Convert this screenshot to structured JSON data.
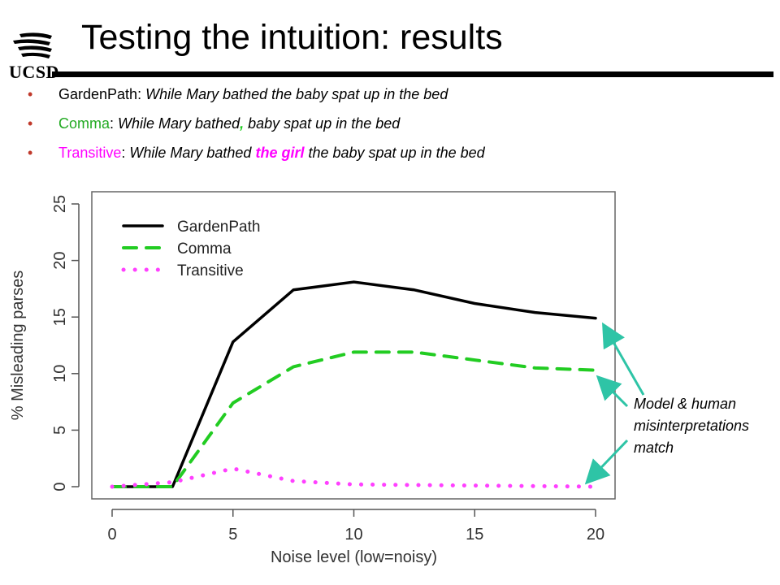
{
  "header": {
    "logo_text": "UCSD",
    "title": "Testing the intuition: results"
  },
  "bullets": [
    {
      "label": "GardenPath",
      "sep": ": ",
      "pre": "While Mary bathed the baby spat up in the bed",
      "mark": "",
      "post": ""
    },
    {
      "label": "Comma",
      "sep": ": ",
      "pre": "While Mary bathed",
      "mark": ",",
      "post": " baby spat up in the bed"
    },
    {
      "label": "Transitive",
      "sep": ": ",
      "pre": "While Mary bathed ",
      "mark": "the girl",
      "post": " the baby spat up in the bed"
    }
  ],
  "colors": {
    "gardenpath": "#000000",
    "comma": "#22cc22",
    "transitive": "#ff40ff",
    "arrow": "#2ec4a6",
    "bullet": "#c0392b"
  },
  "annotation": {
    "lines": [
      "Model & human",
      "misinterpretations",
      "match"
    ]
  },
  "chart_data": {
    "type": "line",
    "xlabel": "Noise level (low=noisy)",
    "ylabel": "% Misleading parses",
    "xlim": [
      0,
      20
    ],
    "ylim": [
      0,
      25
    ],
    "xticks": [
      0,
      5,
      10,
      15,
      20
    ],
    "yticks": [
      0,
      5,
      10,
      15,
      20,
      25
    ],
    "legend_position": "top-left",
    "grid": false,
    "series": [
      {
        "name": "GardenPath",
        "style": "solid",
        "x": [
          0,
          2.5,
          5,
          7.5,
          10,
          12.5,
          15,
          17.5,
          20
        ],
        "y": [
          0,
          0,
          12.8,
          17.4,
          18.1,
          17.4,
          16.2,
          15.4,
          14.9
        ]
      },
      {
        "name": "Comma",
        "style": "dashed",
        "x": [
          0,
          2.5,
          5,
          7.5,
          10,
          12.5,
          15,
          17.5,
          20
        ],
        "y": [
          0,
          0,
          7.4,
          10.6,
          11.9,
          11.9,
          11.2,
          10.5,
          10.3
        ]
      },
      {
        "name": "Transitive",
        "style": "dotted",
        "x": [
          0,
          2.5,
          5,
          7.5,
          10,
          12.5,
          15,
          17.5,
          20
        ],
        "y": [
          0,
          0.4,
          1.6,
          0.5,
          0.2,
          0.15,
          0.1,
          0.05,
          0
        ]
      }
    ]
  }
}
